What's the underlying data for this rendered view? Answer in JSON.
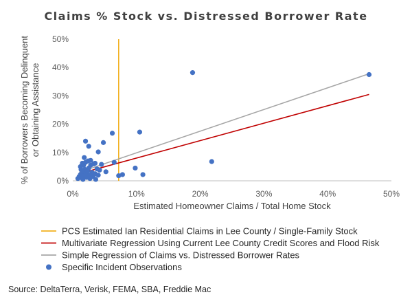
{
  "chart_data": {
    "type": "scatter",
    "title": "Claims % Stock vs. Distressed Borrower Rate",
    "xlabel": "Estimated Homeowner Claims / Total Home Stock",
    "ylabel_lines": [
      "% of Borrowers Becoming Delinquent",
      "or Obtaining Assistance"
    ],
    "xlim": [
      0,
      0.5
    ],
    "ylim": [
      0,
      0.5
    ],
    "x_ticks": [
      {
        "value": 0,
        "label": "0%"
      },
      {
        "value": 0.1,
        "label": "10%"
      },
      {
        "value": 0.2,
        "label": "20%"
      },
      {
        "value": 0.3,
        "label": "30%"
      },
      {
        "value": 0.4,
        "label": "40%"
      },
      {
        "value": 0.5,
        "label": "50%"
      }
    ],
    "y_ticks": [
      {
        "value": 0,
        "label": "0%"
      },
      {
        "value": 0.1,
        "label": "10%"
      },
      {
        "value": 0.2,
        "label": "20%"
      },
      {
        "value": 0.3,
        "label": "30%"
      },
      {
        "value": 0.4,
        "label": "40%"
      },
      {
        "value": 0.5,
        "label": "50%"
      }
    ],
    "grid": false,
    "legend_position": "bottom",
    "series": [
      {
        "name": "PCS Estimated Ian Residential Claims in Lee County / Single-Family Stock",
        "kind": "vline",
        "color": "#F2B01E",
        "x": 0.072
      },
      {
        "name": "Multivariate Regression Using Current Lee County Credit Scores and Flood Risk",
        "kind": "line",
        "color": "#C00000",
        "points": [
          [
            0.01,
            0.025
          ],
          [
            0.465,
            0.305
          ]
        ]
      },
      {
        "name": "Simple Regression of Claims vs. Distressed Borrower Rates",
        "kind": "line",
        "color": "#A6A6A6",
        "points": [
          [
            0.01,
            0.03
          ],
          [
            0.465,
            0.378
          ]
        ]
      },
      {
        "name": "Specific Incident Observations",
        "kind": "scatter",
        "color": "#4472C4",
        "points": [
          [
            0.008,
            0.008
          ],
          [
            0.01,
            0.015
          ],
          [
            0.012,
            0.022
          ],
          [
            0.014,
            0.01
          ],
          [
            0.015,
            0.03
          ],
          [
            0.016,
            0.005
          ],
          [
            0.017,
            0.055
          ],
          [
            0.018,
            0.018
          ],
          [
            0.019,
            0.04
          ],
          [
            0.02,
            0.065
          ],
          [
            0.021,
            0.025
          ],
          [
            0.022,
            0.012
          ],
          [
            0.023,
            0.035
          ],
          [
            0.024,
            0.07
          ],
          [
            0.025,
            0.045
          ],
          [
            0.026,
            0.02
          ],
          [
            0.027,
            0.008
          ],
          [
            0.028,
            0.055
          ],
          [
            0.03,
            0.03
          ],
          [
            0.032,
            0.015
          ],
          [
            0.033,
            0.06
          ],
          [
            0.035,
            0.025
          ],
          [
            0.036,
            0.005
          ],
          [
            0.038,
            0.042
          ],
          [
            0.04,
            0.02
          ],
          [
            0.042,
            0.038
          ],
          [
            0.045,
            0.058
          ],
          [
            0.012,
            0.05
          ],
          [
            0.015,
            0.062
          ],
          [
            0.013,
            0.04
          ],
          [
            0.018,
            0.082
          ],
          [
            0.02,
            0.14
          ],
          [
            0.025,
            0.122
          ],
          [
            0.028,
            0.072
          ],
          [
            0.035,
            0.062
          ],
          [
            0.04,
            0.102
          ],
          [
            0.048,
            0.135
          ],
          [
            0.052,
            0.032
          ],
          [
            0.062,
            0.168
          ],
          [
            0.065,
            0.065
          ],
          [
            0.072,
            0.018
          ],
          [
            0.078,
            0.022
          ],
          [
            0.098,
            0.045
          ],
          [
            0.105,
            0.172
          ],
          [
            0.11,
            0.022
          ],
          [
            0.188,
            0.382
          ],
          [
            0.218,
            0.068
          ],
          [
            0.465,
            0.375
          ]
        ]
      }
    ]
  },
  "source_note": "Source: DeltaTerra, Verisk, FEMA, SBA, Freddie Mac"
}
